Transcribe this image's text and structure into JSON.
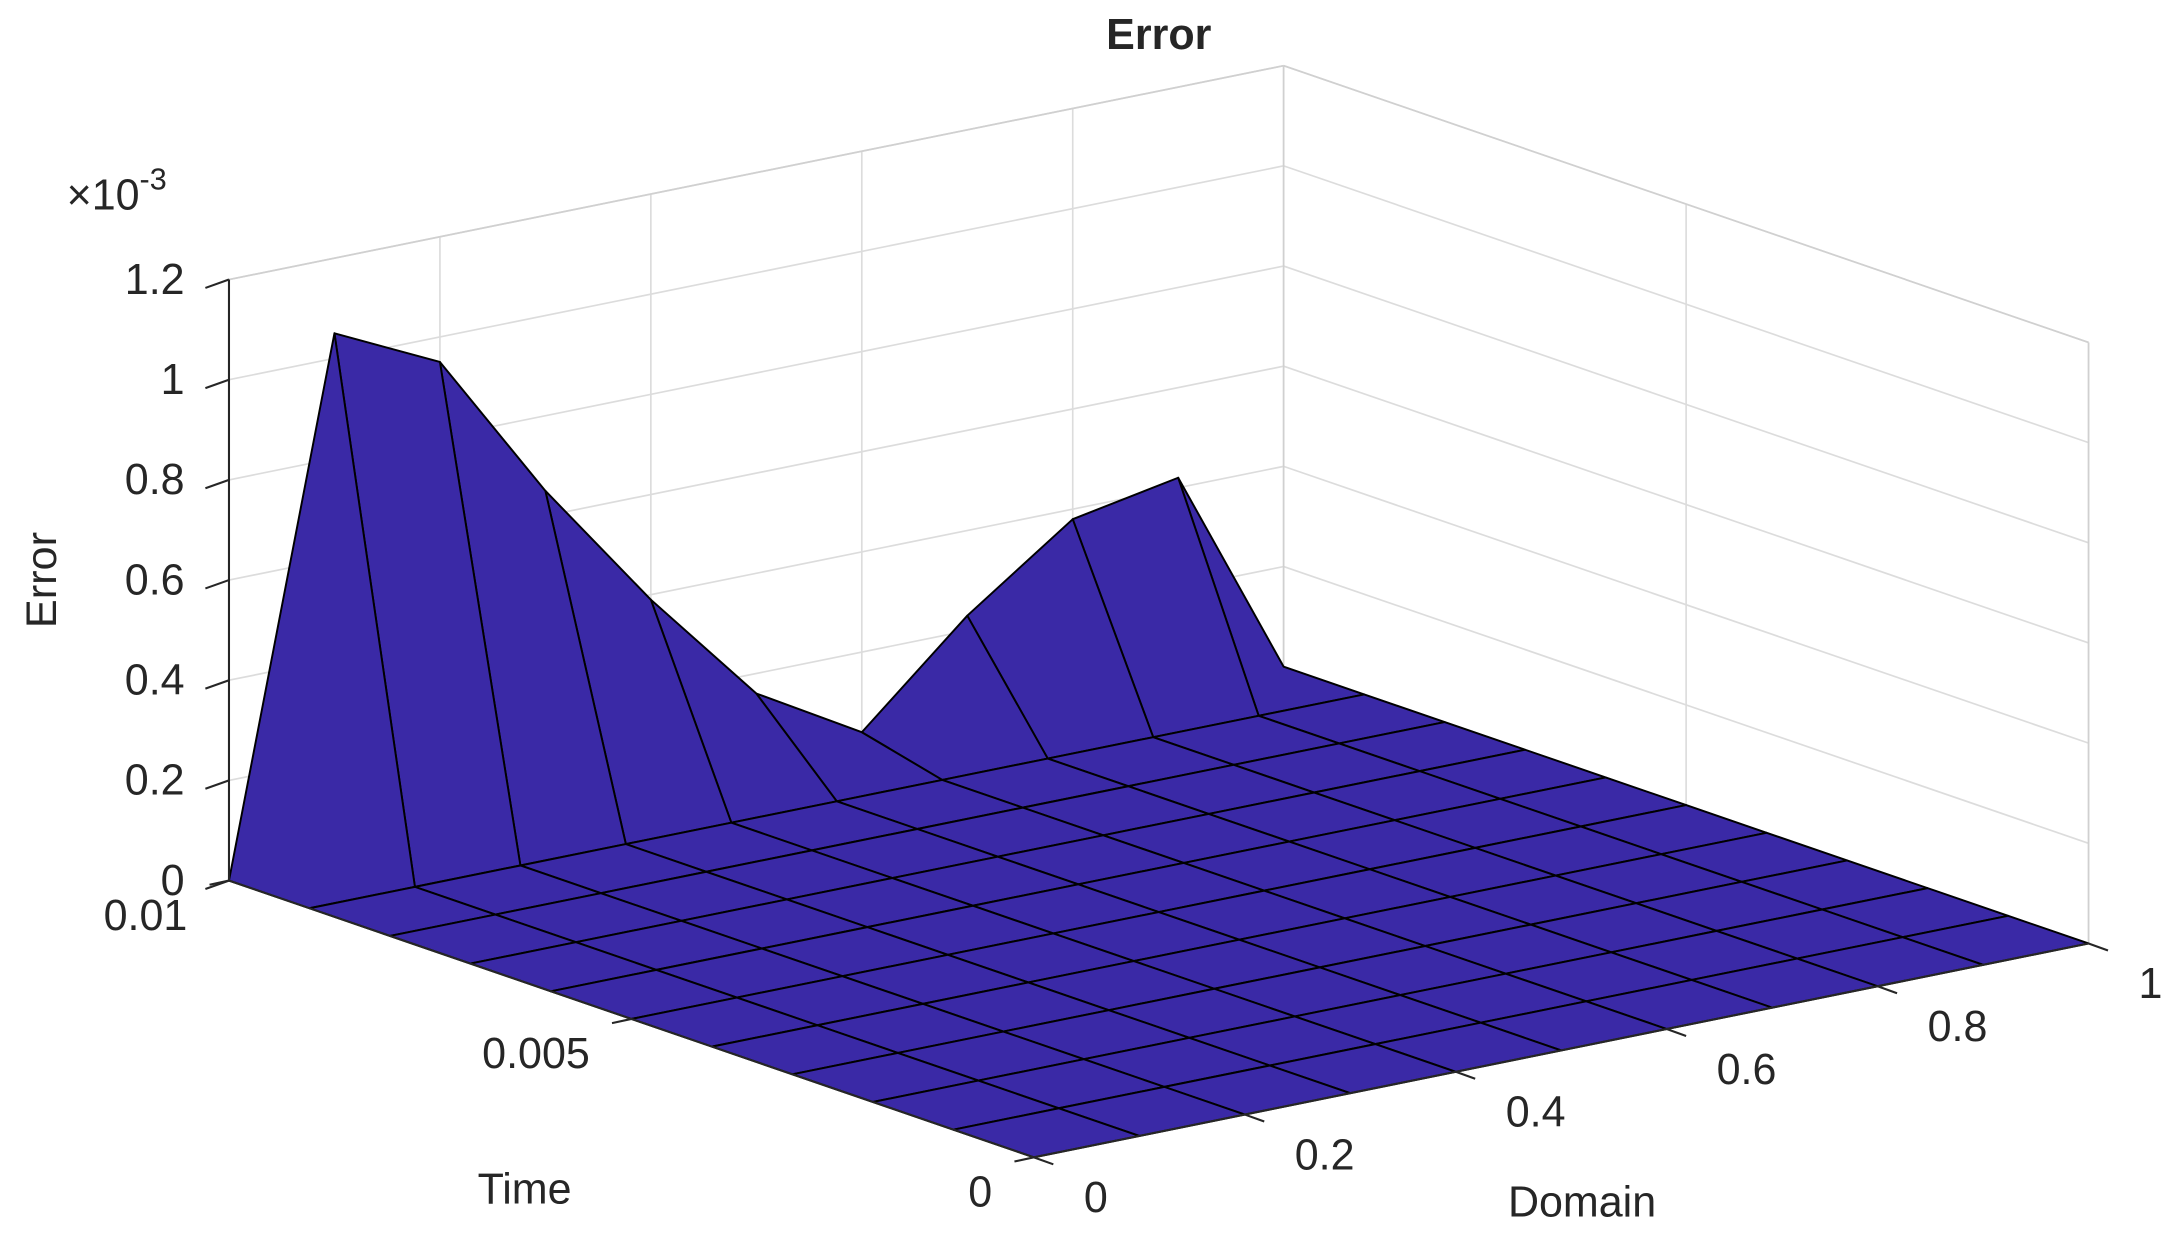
{
  "chart_data": {
    "type": "surface",
    "title": "Error",
    "xlabel": "Domain",
    "ylabel": "Time",
    "zlabel": "Error",
    "z_multiplier": {
      "base": "×10",
      "exponent": "-3"
    },
    "color": "#3a29a6",
    "edge_color": "#000000",
    "grid": true,
    "x": [
      0,
      0.1,
      0.2,
      0.3,
      0.4,
      0.5,
      0.6,
      0.7,
      0.8,
      0.9,
      1
    ],
    "y": [
      0,
      0.001,
      0.002,
      0.003,
      0.004,
      0.005,
      0.006,
      0.007,
      0.008,
      0.009,
      0.01
    ],
    "z": [
      [
        0,
        0,
        0,
        0,
        0,
        0,
        0,
        0,
        0,
        0,
        0
      ],
      [
        0,
        0,
        0,
        0,
        0,
        0,
        0,
        0,
        0,
        0,
        0
      ],
      [
        0,
        0,
        0,
        0,
        0,
        0,
        0,
        0,
        0,
        0,
        0
      ],
      [
        0,
        0,
        0,
        0,
        0,
        0,
        0,
        0,
        0,
        0,
        0
      ],
      [
        0,
        0,
        0,
        0,
        0,
        0,
        0,
        0,
        0,
        0,
        0
      ],
      [
        0,
        0,
        0,
        0,
        0,
        0,
        0,
        0,
        0,
        0,
        0
      ],
      [
        0,
        0,
        0,
        0,
        0,
        0,
        0,
        0,
        0,
        0,
        0
      ],
      [
        0,
        0,
        0,
        0,
        0,
        0,
        0,
        0,
        0,
        0,
        0
      ],
      [
        0,
        0,
        0,
        0,
        0,
        0,
        0,
        0,
        0,
        0,
        0
      ],
      [
        0,
        0,
        0,
        0,
        0,
        0,
        0,
        0,
        0,
        0,
        0
      ],
      [
        0,
        1.05,
        0.95,
        0.65,
        0.39,
        0.16,
        0.04,
        0.23,
        0.38,
        0.42,
        0
      ]
    ],
    "xlim": [
      0,
      1
    ],
    "ylim": [
      0,
      0.01
    ],
    "zlim": [
      0,
      1.2
    ],
    "xticks": [
      0,
      0.2,
      0.4,
      0.6,
      0.8,
      1
    ],
    "yticks": [
      0,
      0.005,
      0.01
    ],
    "zticks": [
      0,
      0.2,
      0.4,
      0.6,
      0.8,
      1,
      1.2
    ]
  }
}
